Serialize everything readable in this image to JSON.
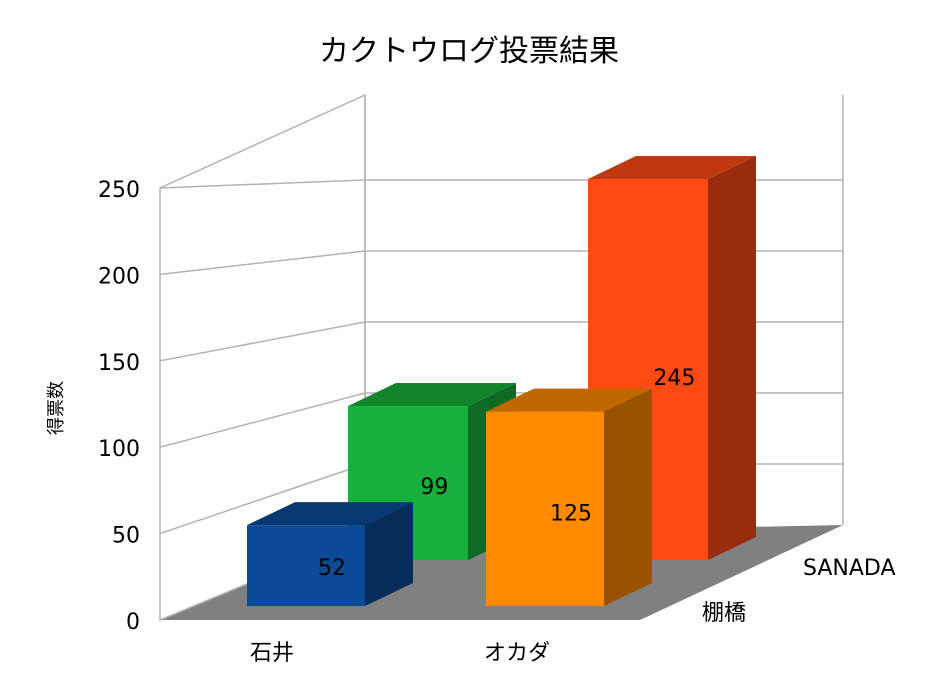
{
  "title": "カクトウログ投票結果",
  "chart_data": {
    "type": "bar",
    "title": "カクトウログ投票結果",
    "ylabel": "得票数",
    "xlabel": "",
    "ylim": [
      0,
      250
    ],
    "yticks": [
      0,
      50,
      100,
      150,
      200,
      250
    ],
    "grid": true,
    "categories": [
      "石井",
      "棚橋",
      "オカダ",
      "SANADA"
    ],
    "front_row_labels": [
      "石井",
      "オカダ"
    ],
    "back_row_labels": [
      "棚橋",
      "SANADA"
    ],
    "values": [
      52,
      99,
      125,
      245
    ],
    "colors": [
      "#0a4a96",
      "#16b03a",
      "#ff8a00",
      "#ff4a14"
    ]
  }
}
